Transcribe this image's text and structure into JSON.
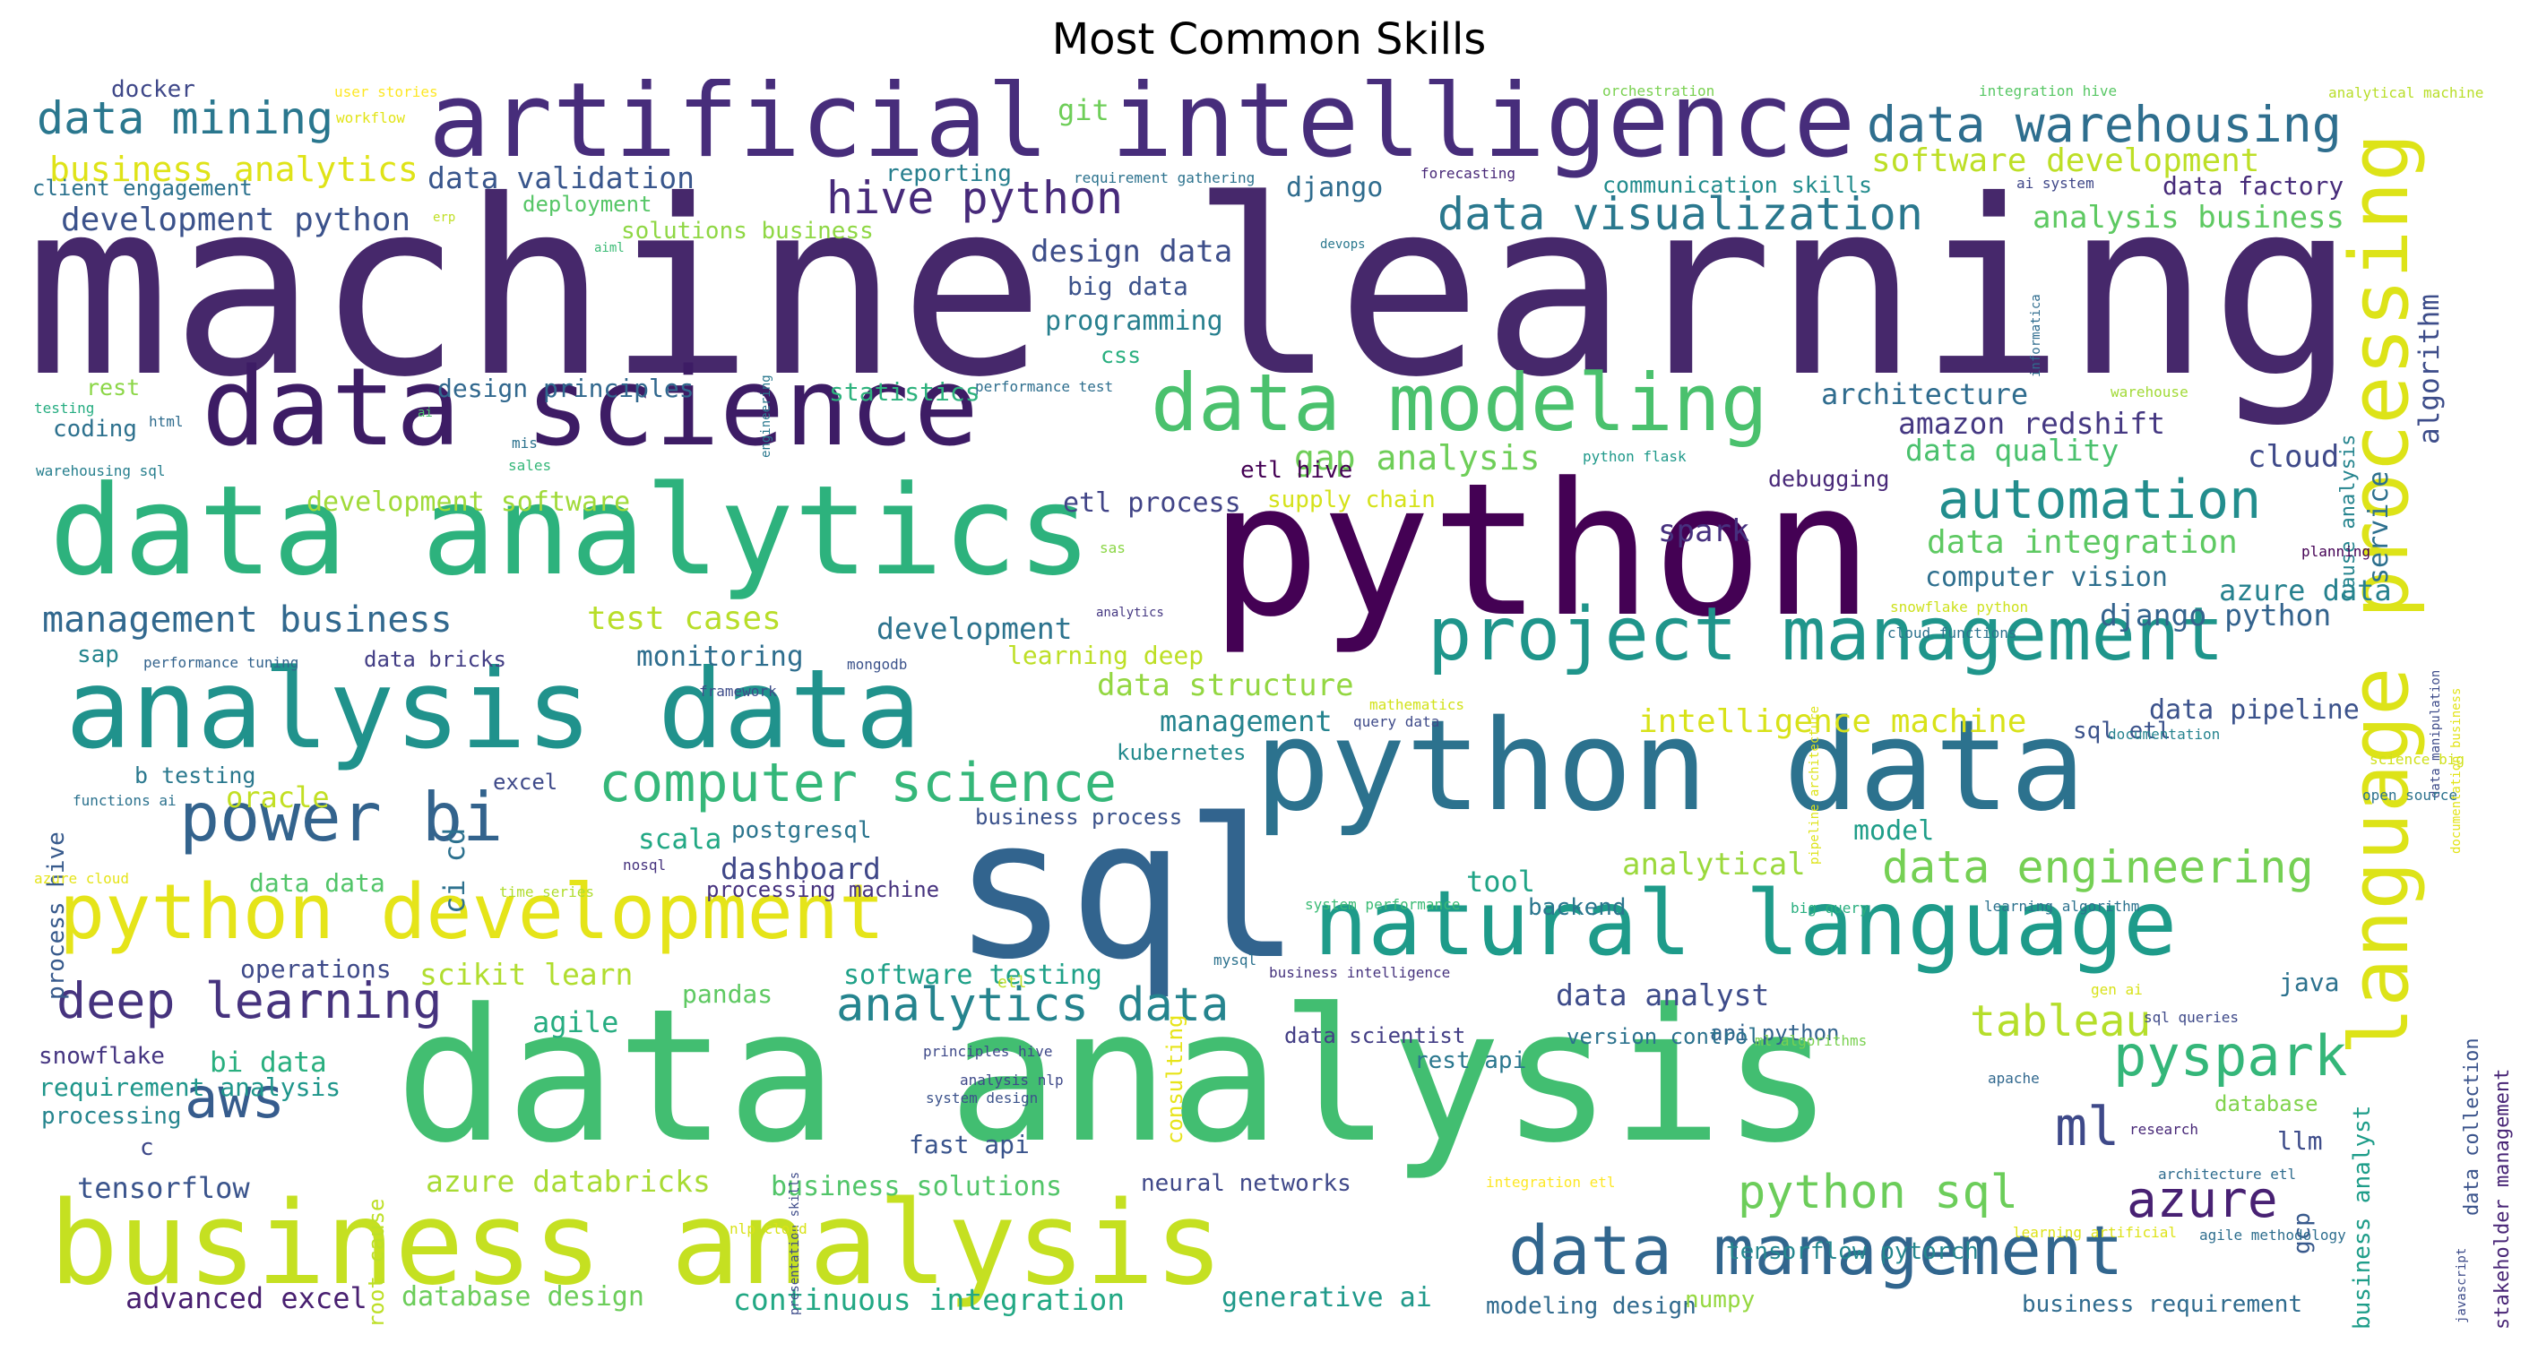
{
  "title": "Most Common Skills",
  "words": [
    {
      "text": "machine learning",
      "color": "#46286b"
    },
    {
      "text": "data analysis",
      "color": "#42be71"
    },
    {
      "text": "python",
      "color": "#440154"
    },
    {
      "text": "artificial intelligence",
      "color": "#472d7b"
    },
    {
      "text": "data science",
      "color": "#3d1c65"
    },
    {
      "text": "data analytics",
      "color": "#2db27d"
    },
    {
      "text": "analysis data",
      "color": "#20928c"
    },
    {
      "text": "python data",
      "color": "#2c728e"
    },
    {
      "text": "sql",
      "color": "#32648e"
    },
    {
      "text": "business analysis",
      "color": "#c5e021"
    },
    {
      "text": "language processing",
      "color": "#dde318"
    },
    {
      "text": "project management",
      "color": "#1f958b"
    },
    {
      "text": "natural language",
      "color": "#1e9b8a"
    },
    {
      "text": "data modeling",
      "color": "#4ac16d"
    },
    {
      "text": "data management",
      "color": "#31668e"
    },
    {
      "text": "python development",
      "color": "#e5e419"
    },
    {
      "text": "power bi",
      "color": "#33638d"
    },
    {
      "text": "computer science",
      "color": "#35b779"
    },
    {
      "text": "data warehousing",
      "color": "#2e6e8e"
    },
    {
      "text": "data visualization",
      "color": "#2a788e"
    },
    {
      "text": "automation",
      "color": "#228d8d"
    },
    {
      "text": "deep learning",
      "color": "#46337e"
    },
    {
      "text": "analytics data",
      "color": "#25848e"
    },
    {
      "text": "aws",
      "color": "#365c8d"
    },
    {
      "text": "pyspark",
      "color": "#34b679"
    },
    {
      "text": "python sql",
      "color": "#6ccd5a"
    },
    {
      "text": "azure",
      "color": "#482173"
    },
    {
      "text": "data mining",
      "color": "#2a778e"
    },
    {
      "text": "hive python",
      "color": "#472a7a"
    },
    {
      "text": "data engineering",
      "color": "#75d054"
    },
    {
      "text": "tableau",
      "color": "#b5de2b"
    },
    {
      "text": "ml",
      "color": "#3e4989"
    },
    {
      "text": "management business",
      "color": "#31688e"
    },
    {
      "text": "business analytics",
      "color": "#dfe318"
    },
    {
      "text": "software development",
      "color": "#bddf26"
    },
    {
      "text": "gap analysis",
      "color": "#6ece58"
    },
    {
      "text": "data integration",
      "color": "#5ec962"
    },
    {
      "text": "test cases",
      "color": "#b8de29"
    },
    {
      "text": "development python",
      "color": "#3b528b"
    },
    {
      "text": "design data",
      "color": "#3d4e8a"
    },
    {
      "text": "data structure",
      "color": "#93d741"
    },
    {
      "text": "intelligence machine",
      "color": "#d8e219"
    },
    {
      "text": "amazon redshift",
      "color": "#453882"
    },
    {
      "text": "data quality",
      "color": "#4ac16d"
    },
    {
      "text": "architecture",
      "color": "#2f6c8e"
    },
    {
      "text": "cloud",
      "color": "#3e4989"
    },
    {
      "text": "data validation",
      "color": "#39568c"
    },
    {
      "text": "django python",
      "color": "#33638d"
    },
    {
      "text": "azure data",
      "color": "#26818e"
    },
    {
      "text": "analysis business",
      "color": "#5ec962"
    },
    {
      "text": "algorithm",
      "color": "#3d4d8a"
    },
    {
      "text": "service",
      "color": "#2d708e"
    },
    {
      "text": "computer vision",
      "color": "#2e6f8e"
    },
    {
      "text": "data factory",
      "color": "#472c7a"
    },
    {
      "text": "management",
      "color": "#25838e"
    },
    {
      "text": "development",
      "color": "#2c738e"
    },
    {
      "text": "monitoring",
      "color": "#2e6e8e"
    },
    {
      "text": "data pipeline",
      "color": "#3b528b"
    },
    {
      "text": "analytical",
      "color": "#9bd93c"
    },
    {
      "text": "dashboard",
      "color": "#3f4788"
    },
    {
      "text": "ci cd",
      "color": "#2d718e"
    },
    {
      "text": "scala",
      "color": "#22a884"
    },
    {
      "text": "model",
      "color": "#1f9e89"
    },
    {
      "text": "tool",
      "color": "#20a486"
    },
    {
      "text": "oracle",
      "color": "#c2df23"
    },
    {
      "text": "scikit learn",
      "color": "#b0dd2f"
    },
    {
      "text": "agile",
      "color": "#27ad81"
    },
    {
      "text": "data analyst",
      "color": "#3e4c8a"
    },
    {
      "text": "java",
      "color": "#2c728e"
    },
    {
      "text": "gcp",
      "color": "#38598c"
    },
    {
      "text": "business analyst",
      "color": "#1e9d89"
    },
    {
      "text": "bi data",
      "color": "#29af7f"
    },
    {
      "text": "requirement analysis",
      "color": "#1f968b"
    },
    {
      "text": "tensorflow",
      "color": "#3a548c"
    },
    {
      "text": "azure databricks",
      "color": "#a8db34"
    },
    {
      "text": "advanced excel",
      "color": "#481f70"
    },
    {
      "text": "database design",
      "color": "#6ccd5a"
    },
    {
      "text": "continuous integration",
      "color": "#22a884"
    },
    {
      "text": "generative ai",
      "color": "#1f998a"
    },
    {
      "text": "modeling design",
      "color": "#306a8e"
    },
    {
      "text": "numpy",
      "color": "#95d840"
    },
    {
      "text": "business requirement",
      "color": "#2f6b8e"
    },
    {
      "text": "tensorflow pytorch",
      "color": "#24878e"
    },
    {
      "text": "neural networks",
      "color": "#3f4889"
    },
    {
      "text": "business solutions",
      "color": "#52c569"
    },
    {
      "text": "fast api",
      "color": "#3a548c"
    },
    {
      "text": "software testing",
      "color": "#1fa188"
    },
    {
      "text": "pandas",
      "color": "#5ec962"
    },
    {
      "text": "operations",
      "color": "#3e4a89"
    },
    {
      "text": "snowflake",
      "color": "#453581"
    },
    {
      "text": "processing",
      "color": "#25858e"
    },
    {
      "text": "c",
      "color": "#3e4989"
    },
    {
      "text": "spark",
      "color": "#46307e"
    },
    {
      "text": "debugging",
      "color": "#482878"
    },
    {
      "text": "etl hive",
      "color": "#440154"
    },
    {
      "text": "etl process",
      "color": "#414487"
    },
    {
      "text": "supply chain",
      "color": "#d5e21a"
    },
    {
      "text": "development software",
      "color": "#a0da39"
    },
    {
      "text": "design principles",
      "color": "#31688e"
    },
    {
      "text": "statistics",
      "color": "#2db27d"
    },
    {
      "text": "coding",
      "color": "#2d718e"
    },
    {
      "text": "rest",
      "color": "#8bd646"
    },
    {
      "text": "programming",
      "color": "#277f8e"
    },
    {
      "text": "big data",
      "color": "#3b528b"
    },
    {
      "text": "css",
      "color": "#29af7f"
    },
    {
      "text": "django",
      "color": "#2f6c8e"
    },
    {
      "text": "git",
      "color": "#6ece58"
    },
    {
      "text": "docker",
      "color": "#3f4889"
    },
    {
      "text": "client engagement",
      "color": "#2c728e"
    },
    {
      "text": "reporting",
      "color": "#277f8e"
    },
    {
      "text": "solutions business",
      "color": "#8fd744"
    },
    {
      "text": "deployment",
      "color": "#56c667"
    },
    {
      "text": "communication skills",
      "color": "#228c8d"
    },
    {
      "text": "data bricks",
      "color": "#433e85"
    },
    {
      "text": "sap",
      "color": "#25858e"
    },
    {
      "text": "process hive",
      "color": "#375a8c"
    },
    {
      "text": "b testing",
      "color": "#2a788e"
    },
    {
      "text": "data data",
      "color": "#52c569"
    },
    {
      "text": "excel",
      "color": "#3e4989"
    },
    {
      "text": "postgresql",
      "color": "#2b758e"
    },
    {
      "text": "business process",
      "color": "#3b528b"
    },
    {
      "text": "processing machine",
      "color": "#46327e"
    },
    {
      "text": "learning deep",
      "color": "#bddf26"
    },
    {
      "text": "kubernetes",
      "color": "#238a8d"
    },
    {
      "text": "sql etl",
      "color": "#3b528b"
    },
    {
      "text": "backend",
      "color": "#2a768e"
    },
    {
      "text": "consulting",
      "color": "#e7e419"
    },
    {
      "text": "api python",
      "color": "#33638d"
    },
    {
      "text": "version control",
      "color": "#2c728e"
    },
    {
      "text": "data scientist",
      "color": "#433e85"
    },
    {
      "text": "rest api",
      "color": "#2a778e"
    },
    {
      "text": "root cause",
      "color": "#bddf26"
    },
    {
      "text": "stakeholder management",
      "color": "#482576"
    },
    {
      "text": "data collection",
      "color": "#3a538b"
    },
    {
      "text": "cause analysis",
      "color": "#25848e"
    },
    {
      "text": "llm",
      "color": "#3e4c8a"
    },
    {
      "text": "database",
      "color": "#81d34d"
    },
    {
      "text": "user stories",
      "color": "#fde725"
    },
    {
      "text": "workflow",
      "color": "#e2e418"
    },
    {
      "text": "orchestration",
      "color": "#7ad151"
    },
    {
      "text": "integration hive",
      "color": "#58c765"
    },
    {
      "text": "analytical machine",
      "color": "#b8de29"
    },
    {
      "text": "requirement gathering",
      "color": "#2c728e"
    },
    {
      "text": "forecasting",
      "color": "#482878"
    },
    {
      "text": "ai system",
      "color": "#3f4788"
    },
    {
      "text": "erp",
      "color": "#c0df25"
    },
    {
      "text": "aiml",
      "color": "#3bbb75"
    },
    {
      "text": "devops",
      "color": "#2a788e"
    },
    {
      "text": "informatica",
      "color": "#2f6c8e"
    },
    {
      "text": "engineering",
      "color": "#2a788e"
    },
    {
      "text": "testing",
      "color": "#26ad81"
    },
    {
      "text": "html",
      "color": "#2f6c8e"
    },
    {
      "text": "ai",
      "color": "#4ac16d"
    },
    {
      "text": "mis",
      "color": "#2c728e"
    },
    {
      "text": "sales",
      "color": "#35b779"
    },
    {
      "text": "warehousing sql",
      "color": "#277f8e"
    },
    {
      "text": "performance test",
      "color": "#2e6e8e"
    },
    {
      "text": "warehouse",
      "color": "#a2da37"
    },
    {
      "text": "python flask",
      "color": "#1f998a"
    },
    {
      "text": "sas",
      "color": "#8bd646"
    },
    {
      "text": "planning",
      "color": "#440154"
    },
    {
      "text": "data manipulation",
      "color": "#3e4c8a"
    },
    {
      "text": "documentation business",
      "color": "#e2e418"
    },
    {
      "text": "pipeline architecture",
      "color": "#dde318"
    },
    {
      "text": "snowflake python",
      "color": "#cde11d"
    },
    {
      "text": "analytics",
      "color": "#453882"
    },
    {
      "text": "cloud functions",
      "color": "#2c728e"
    },
    {
      "text": "performance tuning",
      "color": "#33638d"
    },
    {
      "text": "mongodb",
      "color": "#3b528b"
    },
    {
      "text": "framework",
      "color": "#3e4c8a"
    },
    {
      "text": "mathematics",
      "color": "#d2e21b"
    },
    {
      "text": "query data",
      "color": "#3e4a89"
    },
    {
      "text": "documentation",
      "color": "#25838e"
    },
    {
      "text": "science big",
      "color": "#d0e11c"
    },
    {
      "text": "open source",
      "color": "#2c728e"
    },
    {
      "text": "functions ai",
      "color": "#2c728e"
    },
    {
      "text": "azure cloud",
      "color": "#e5e419"
    },
    {
      "text": "time series",
      "color": "#b0dd2f"
    },
    {
      "text": "nosql",
      "color": "#46337e"
    },
    {
      "text": "system performance",
      "color": "#3bbb75"
    },
    {
      "text": "big query",
      "color": "#29af7f"
    },
    {
      "text": "learning algorithm",
      "color": "#2c728e"
    },
    {
      "text": "mysql",
      "color": "#2c728e"
    },
    {
      "text": "etl",
      "color": "#bddf26"
    },
    {
      "text": "business intelligence",
      "color": "#46337e"
    },
    {
      "text": "gen ai",
      "color": "#d8e219"
    },
    {
      "text": "sql queries",
      "color": "#3e4989"
    },
    {
      "text": "presentation skills",
      "color": "#3e4c8a"
    },
    {
      "text": "principles hive",
      "color": "#3e4989"
    },
    {
      "text": "analysis nlp",
      "color": "#3e4989"
    },
    {
      "text": "system design",
      "color": "#3b528b"
    },
    {
      "text": "ml algorithms",
      "color": "#7ad151"
    },
    {
      "text": "apache",
      "color": "#31688e"
    },
    {
      "text": "research",
      "color": "#482878"
    },
    {
      "text": "architecture etl",
      "color": "#2f6c8e"
    },
    {
      "text": "integration etl",
      "color": "#fde725"
    },
    {
      "text": "nlp cloud",
      "color": "#d8e219"
    },
    {
      "text": "learning artificial",
      "color": "#dde318"
    },
    {
      "text": "agile methodology",
      "color": "#2e6e8e"
    },
    {
      "text": "javascript",
      "color": "#3e4c8a"
    }
  ]
}
